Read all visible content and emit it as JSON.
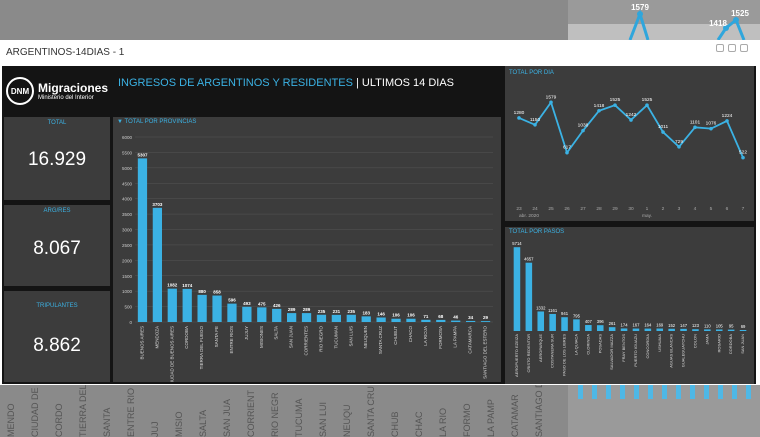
{
  "window": {
    "title": "ARGENTINOS-14DIAS - 1"
  },
  "header": {
    "brand_name": "Migraciones",
    "brand_sub": "Ministerio del Interior",
    "logo_initials": "DNM",
    "title_main": "INGRESOS DE ARGENTINOS Y RESIDENTES",
    "title_sep": " | ",
    "title_sub": "ULTIMOS 14 DIAS"
  },
  "kpis": {
    "total": {
      "label": "TOTAL",
      "value": "16.929"
    },
    "argres": {
      "label": "ARG/RES",
      "value": "8.067"
    },
    "tripulantes": {
      "label": "TRIPULANTES",
      "value": "8.862"
    }
  },
  "panels": {
    "provincias": "TOTAL POR PROVINCIAS",
    "dia": "TOTAL POR DIA",
    "pasos": "TOTAL POR PASOS"
  },
  "background": {
    "labels": [
      "MENDO",
      "CIUDAD DE BUENOS AIRE",
      "CORDO",
      "TIERRA DEL FUEGO",
      "SANTA",
      "ENTRE RIO",
      "JUJ",
      "MISIO",
      "SALTA",
      "SAN JUA",
      "CORRIENT",
      "RIO NEGR",
      "TUCUMA",
      "SAN LUI",
      "NEUQU",
      "SANTA CRU",
      "CHUB",
      "CHAC",
      "LA RIO",
      "FORMO",
      "LA PAMP",
      "CATAMAR",
      "SANTIAGO DEL ESTE"
    ],
    "chart_values": [
      "1579",
      "1418",
      "1525"
    ]
  },
  "chart_data": [
    {
      "type": "bar",
      "title": "TOTAL POR PROVINCIAS",
      "categories": [
        "BUENOS AIRES",
        "MENDOZA",
        "CIUDAD DE BUENOS AIRES",
        "CORDOBA",
        "TIERRA DEL FUEGO",
        "SANTA FE",
        "ENTRE RIOS",
        "JUJUY",
        "MISIONES",
        "SALTA",
        "SAN JUAN",
        "CORRIENTES",
        "RIO NEGRO",
        "TUCUMAN",
        "SAN LUIS",
        "NEUQUEN",
        "SANTA CRUZ",
        "CHUBUT",
        "CHACO",
        "LA RIOJA",
        "FORMOSA",
        "LA PAMPA",
        "CATAMARCA",
        "SANTIAGO DEL ESTERO"
      ],
      "values": [
        5307,
        3703,
        1082,
        1074,
        880,
        858,
        596,
        493,
        475,
        426,
        289,
        289,
        235,
        231,
        235,
        183,
        146,
        106,
        106,
        71,
        68,
        46,
        34,
        29
      ],
      "ylim": [
        0,
        6000
      ],
      "yticks": [
        0,
        500,
        1000,
        1500,
        2000,
        2500,
        3000,
        3500,
        4000,
        4500,
        5000,
        5500,
        6000
      ],
      "grid": true
    },
    {
      "type": "line",
      "title": "TOTAL POR DIA",
      "x": [
        "23",
        "24",
        "25",
        "26",
        "27",
        "28",
        "29",
        "30",
        "1",
        "2",
        "3",
        "4",
        "5",
        "6",
        "7"
      ],
      "x_group_labels": [
        "abr. 2020",
        "may."
      ],
      "values": [
        1280,
        1150,
        1579,
        617,
        1038,
        1418,
        1525,
        1242,
        1525,
        1011,
        729,
        1101,
        1076,
        1224,
        522
      ],
      "ylim": [
        400,
        1700
      ]
    },
    {
      "type": "bar",
      "title": "TOTAL POR PASOS",
      "values": [
        5714,
        4657,
        1332,
        1161,
        941,
        795,
        407,
        396,
        261,
        174,
        167,
        164,
        169,
        152,
        147,
        123,
        110,
        105,
        95,
        69
      ],
      "categories": [
        "AEROPUERTO EZEIZA",
        "CRISTO REDENTOR",
        "AEROPARQUE",
        "COSTANERA SUR",
        "PASO DE LOS LIBRES",
        "LA QUIACA",
        "CLORINDA",
        "POSADAS",
        "SALVADOR MAZZA",
        "FRAY BENTOS",
        "PUERTO IGUAZU",
        "CONCORDIA",
        "USHUAIA",
        "AGUAS BLANCAS",
        "GUALEGUAYCHU",
        "COLON",
        "JAMA",
        "ROSARIO",
        "CORDOBA",
        "SAN JUAN"
      ],
      "ylim": [
        0,
        6000
      ]
    }
  ]
}
